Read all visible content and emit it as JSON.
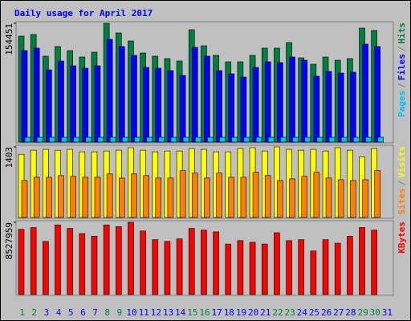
{
  "chart_data": [
    {
      "type": "bar",
      "title": "Daily usage for April 2017",
      "separator": "/",
      "ylim": [
        0,
        154451
      ],
      "yticks": [
        154451
      ],
      "series": [
        {
          "name": "Hits",
          "color": "#008040",
          "values": [
            137750,
            139840,
            111660,
            124190,
            118970,
            110620,
            116880,
            154451,
            141930,
            131490,
            115840,
            111660,
            108530,
            105400,
            146100,
            125230,
            112710,
            104360,
            104360,
            112710,
            122100,
            122100,
            129400,
            109580,
            101230,
            110620,
            106440,
            108530,
            148190,
            145060,
            null
          ]
        },
        {
          "name": "Files",
          "color": "#0000FF",
          "values": [
            118970,
            122100,
            93920,
            105400,
            99140,
            96010,
            99140,
            133580,
            124190,
            112710,
            97050,
            96010,
            92880,
            86620,
            123140,
            111670,
            92880,
            88710,
            84530,
            97050,
            104360,
            103320,
            110620,
            106450,
            85580,
            91840,
            89750,
            90790,
            127320,
            124190,
            null
          ]
        },
        {
          "name": "Pages",
          "color": "#00C0FF",
          "values": [
            6260,
            6260,
            6260,
            6260,
            6260,
            6260,
            6260,
            6260,
            6260,
            6260,
            6260,
            6260,
            6260,
            6260,
            6260,
            6260,
            6260,
            6260,
            6260,
            6260,
            6260,
            6260,
            6260,
            6260,
            6260,
            6260,
            6260,
            6260,
            6260,
            6260,
            null
          ]
        }
      ]
    },
    {
      "type": "bar",
      "separator": "/",
      "ylim": [
        0,
        1403
      ],
      "yticks": [
        1403
      ],
      "series": [
        {
          "name": "Visits",
          "color": "#FFFF00",
          "values": [
            1256,
            1337,
            1354,
            1337,
            1354,
            1305,
            1305,
            1321,
            1337,
            1386,
            1337,
            1305,
            1321,
            1321,
            1370,
            1354,
            1305,
            1305,
            1370,
            1386,
            1321,
            1403,
            1354,
            1337,
            1354,
            1321,
            1386,
            1337,
            1207,
            1370,
            null
          ]
        },
        {
          "name": "Sites",
          "color": "#FF8000",
          "values": [
            734,
            799,
            799,
            832,
            816,
            799,
            799,
            864,
            783,
            864,
            832,
            783,
            783,
            930,
            881,
            783,
            881,
            799,
            799,
            897,
            832,
            734,
            767,
            816,
            897,
            783,
            750,
            734,
            750,
            930,
            null
          ]
        }
      ]
    },
    {
      "type": "bar",
      "separator": "/",
      "ylim": [
        0,
        8527959
      ],
      "yticks": [
        8527959
      ],
      "categories": [
        "1",
        "2",
        "3",
        "4",
        "5",
        "6",
        "7",
        "8",
        "9",
        "10",
        "11",
        "12",
        "13",
        "14",
        "15",
        "16",
        "17",
        "18",
        "19",
        "20",
        "21",
        "22",
        "23",
        "24",
        "25",
        "26",
        "27",
        "28",
        "29",
        "30",
        "31"
      ],
      "category_colors": [
        "#008040",
        "#008040",
        "#0000FF",
        "#0000FF",
        "#0000FF",
        "#0000FF",
        "#0000FF",
        "#008040",
        "#008040",
        "#0000FF",
        "#0000FF",
        "#0000FF",
        "#0000FF",
        "#0000FF",
        "#008040",
        "#008040",
        "#0000FF",
        "#0000FF",
        "#0000FF",
        "#0000FF",
        "#0000FF",
        "#008040",
        "#008040",
        "#0000FF",
        "#0000FF",
        "#0000FF",
        "#0000FF",
        "#0000FF",
        "#008040",
        "#008040",
        "#0000FF"
      ],
      "series": [
        {
          "name": "KBytes",
          "color": "#FF0000",
          "values": [
            7705950,
            7911440,
            6267510,
            8219680,
            7808700,
            7192220,
            6883980,
            8219680,
            8014190,
            8527959,
            7500460,
            6472990,
            6267510,
            6575740,
            7808700,
            7603200,
            7397710,
            5959270,
            6370250,
            6164760,
            5959270,
            7294970,
            6370250,
            6472990,
            5137300,
            6472990,
            6062010,
            6883980,
            7911440,
            7603200,
            null
          ]
        }
      ]
    }
  ]
}
